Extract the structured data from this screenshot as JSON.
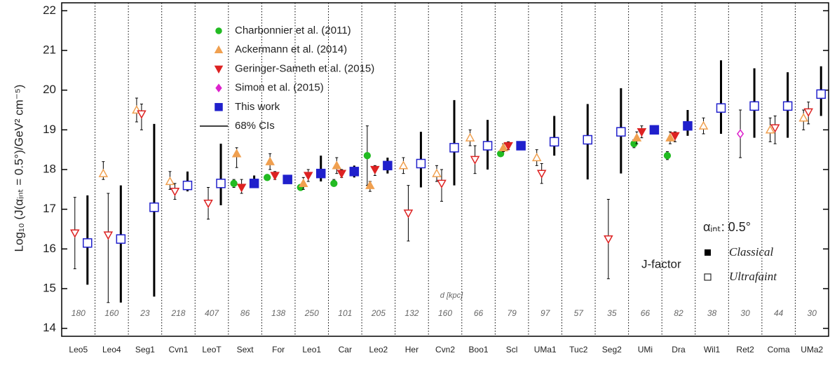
{
  "chart_data": {
    "type": "scatter",
    "y_label": "Log₁₀ (J(αᵢₙₜ = 0.5°)/GeV² cm⁻⁵)",
    "categories": [
      "Leo5",
      "Leo4",
      "Seg1",
      "Cvn1",
      "LeoT",
      "Sext",
      "For",
      "Leo1",
      "Car",
      "Leo2",
      "Her",
      "Cvn2",
      "Boo1",
      "Scl",
      "UMa1",
      "Tuc2",
      "Seg2",
      "UMi",
      "Dra",
      "Wil1",
      "Ret2",
      "Coma",
      "UMa2"
    ],
    "distances": [
      180,
      160,
      23,
      218,
      407,
      86,
      138,
      250,
      101,
      205,
      132,
      160,
      66,
      79,
      97,
      57,
      35,
      66,
      82,
      38,
      30,
      44,
      30
    ],
    "distance_label": "d [kpc]",
    "classical": [
      false,
      false,
      false,
      false,
      false,
      true,
      true,
      true,
      true,
      true,
      false,
      false,
      false,
      true,
      false,
      false,
      false,
      true,
      true,
      false,
      false,
      false,
      false
    ],
    "ylim": [
      13.8,
      22.2
    ],
    "yticks": [
      14,
      15,
      16,
      17,
      18,
      19,
      20,
      21,
      22
    ],
    "series": [
      {
        "name": "Charbonnier et al. (2011)",
        "color": "#22bb22",
        "marker": "circle",
        "values": [
          null,
          null,
          null,
          null,
          null,
          17.65,
          17.8,
          17.55,
          17.65,
          18.35,
          null,
          null,
          null,
          18.4,
          null,
          null,
          null,
          18.65,
          18.35,
          null,
          null,
          null,
          null
        ],
        "lower": [
          null,
          null,
          null,
          null,
          null,
          17.55,
          17.75,
          17.5,
          17.6,
          17.6,
          null,
          null,
          null,
          18.35,
          null,
          null,
          null,
          18.55,
          18.25,
          null,
          null,
          null,
          null
        ],
        "upper": [
          null,
          null,
          null,
          null,
          null,
          17.75,
          17.85,
          17.6,
          17.75,
          19.1,
          null,
          null,
          null,
          18.45,
          null,
          null,
          null,
          18.75,
          18.45,
          null,
          null,
          null,
          null
        ]
      },
      {
        "name": "Ackermann et al. (2014)",
        "color": "#f0a050",
        "marker": "triangle-up",
        "values": [
          null,
          17.9,
          19.5,
          17.7,
          null,
          18.4,
          18.2,
          17.65,
          18.1,
          17.6,
          18.1,
          17.9,
          18.8,
          18.55,
          18.3,
          null,
          null,
          18.8,
          18.8,
          19.1,
          null,
          19.0,
          19.3
        ],
        "lower": [
          null,
          17.75,
          19.2,
          17.5,
          null,
          18.05,
          18.0,
          17.5,
          17.9,
          17.45,
          17.9,
          17.7,
          18.6,
          18.45,
          18.1,
          null,
          null,
          18.65,
          18.65,
          18.9,
          null,
          18.7,
          19.0
        ],
        "upper": [
          null,
          18.2,
          19.8,
          17.95,
          null,
          18.55,
          18.4,
          17.8,
          18.3,
          17.7,
          18.3,
          18.1,
          19.0,
          18.65,
          18.5,
          null,
          null,
          18.95,
          18.95,
          19.3,
          null,
          19.3,
          19.5
        ]
      },
      {
        "name": "Geringer-Sameth et al. (2015)",
        "color": "#dd2222",
        "marker": "triangle-down",
        "values": [
          16.4,
          16.35,
          19.4,
          17.45,
          17.15,
          17.55,
          17.85,
          17.85,
          17.9,
          18.0,
          16.9,
          17.65,
          18.25,
          18.6,
          17.9,
          null,
          16.25,
          18.95,
          18.85,
          null,
          null,
          19.05,
          19.45
        ],
        "lower": [
          15.5,
          14.65,
          19.0,
          17.25,
          16.75,
          17.4,
          17.75,
          17.7,
          17.8,
          17.85,
          16.2,
          17.2,
          17.9,
          18.5,
          17.65,
          null,
          15.25,
          18.8,
          18.7,
          null,
          null,
          18.65,
          19.15
        ],
        "upper": [
          17.3,
          17.4,
          19.65,
          17.65,
          17.55,
          17.75,
          17.95,
          18.0,
          18.0,
          18.1,
          17.6,
          18.0,
          18.6,
          18.7,
          18.15,
          null,
          17.25,
          19.1,
          18.95,
          null,
          null,
          19.35,
          19.7
        ]
      },
      {
        "name": "Simon et al. (2015)",
        "color": "#dd22cc",
        "marker": "diamond",
        "values": [
          null,
          null,
          null,
          null,
          null,
          null,
          null,
          null,
          null,
          null,
          null,
          null,
          null,
          null,
          null,
          null,
          null,
          null,
          null,
          null,
          18.9,
          null,
          null
        ],
        "lower": [
          null,
          null,
          null,
          null,
          null,
          null,
          null,
          null,
          null,
          null,
          null,
          null,
          null,
          null,
          null,
          null,
          null,
          null,
          null,
          null,
          18.3,
          null,
          null
        ],
        "upper": [
          null,
          null,
          null,
          null,
          null,
          null,
          null,
          null,
          null,
          null,
          null,
          null,
          null,
          null,
          null,
          null,
          null,
          null,
          null,
          null,
          19.5,
          null,
          null
        ]
      },
      {
        "name": "This work",
        "color": "#2020cc",
        "marker": "square",
        "values": [
          16.15,
          16.25,
          17.05,
          17.6,
          17.65,
          17.65,
          17.75,
          17.9,
          17.95,
          18.1,
          18.15,
          18.55,
          18.6,
          18.6,
          18.7,
          18.75,
          18.95,
          19.0,
          19.1,
          19.55,
          19.6,
          19.6,
          19.9
        ],
        "lower": [
          15.1,
          14.65,
          14.8,
          17.45,
          17.1,
          17.55,
          17.7,
          17.7,
          17.8,
          17.9,
          17.55,
          17.6,
          18.0,
          18.5,
          18.35,
          17.75,
          17.9,
          18.9,
          18.85,
          18.9,
          18.8,
          18.8,
          19.35
        ],
        "upper": [
          17.35,
          17.6,
          19.15,
          17.95,
          18.65,
          17.85,
          17.8,
          18.35,
          18.1,
          18.3,
          18.95,
          19.75,
          19.25,
          18.7,
          19.35,
          19.65,
          20.05,
          19.1,
          19.5,
          20.75,
          20.55,
          20.45,
          20.6
        ]
      }
    ],
    "ci_label": "68% CIs",
    "annotations": {
      "alpha": "αᵢₙₜ: 0.5°",
      "jfactor": "J-factor",
      "classical": "Classical",
      "ultrafaint": "Ultrafaint"
    }
  }
}
